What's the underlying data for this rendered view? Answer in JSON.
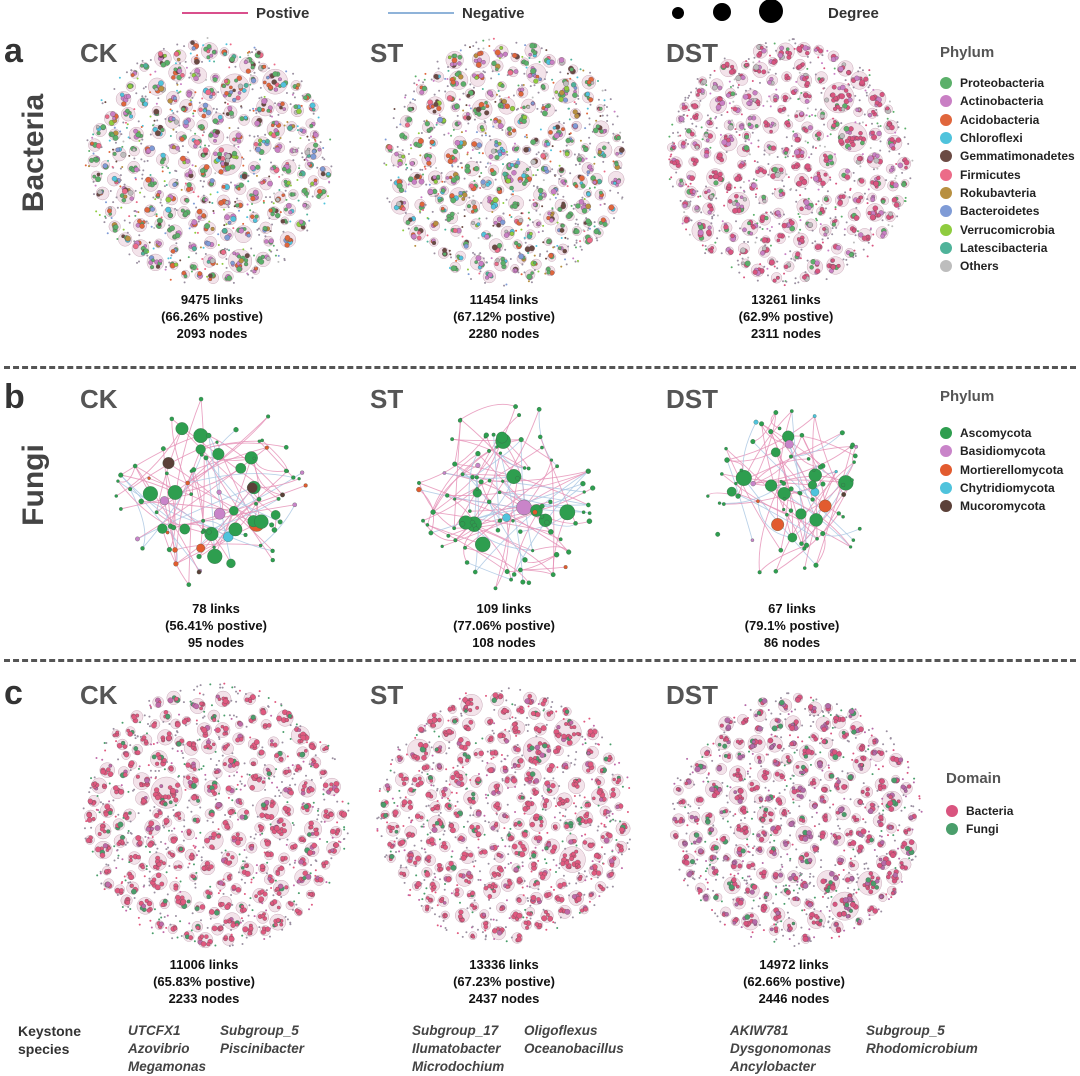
{
  "legend": {
    "positive_label": "Postive",
    "negative_label": "Negative",
    "degree_label": "Degree",
    "positive_color": "#d94f8c",
    "negative_color": "#8fb3d9"
  },
  "panels": [
    {
      "letter": "a",
      "row_label": "Bacteria",
      "legend_title": "Phylum",
      "legend_items": [
        {
          "label": "Proteobacteria",
          "color": "#5bb06a"
        },
        {
          "label": "Actinobacteria",
          "color": "#c97fc4"
        },
        {
          "label": "Acidobacteria",
          "color": "#e0663c"
        },
        {
          "label": "Chloroflexi",
          "color": "#4fc3dc"
        },
        {
          "label": "Gemmatimonadetes",
          "color": "#6b4a43"
        },
        {
          "label": "Firmicutes",
          "color": "#ec6b88"
        },
        {
          "label": "Rokubavteria",
          "color": "#b89040"
        },
        {
          "label": "Bacteroidetes",
          "color": "#7f9bd6"
        },
        {
          "label": "Verrucomicrobia",
          "color": "#8fcc3f"
        },
        {
          "label": "Latescibacteria",
          "color": "#4fb39a"
        },
        {
          "label": "Others",
          "color": "#bdbdbd"
        }
      ],
      "networks": [
        {
          "treatment": "CK",
          "links": "9475 links",
          "positive": "(66.26% postive)",
          "nodes": "2093 nodes"
        },
        {
          "treatment": "ST",
          "links": "11454 links",
          "positive": "(67.12% postive)",
          "nodes": "2280 nodes"
        },
        {
          "treatment": "DST",
          "links": "13261 links",
          "positive": "(62.9% postive)",
          "nodes": "2311 nodes"
        }
      ]
    },
    {
      "letter": "b",
      "row_label": "Fungi",
      "legend_title": "Phylum",
      "legend_items": [
        {
          "label": "Ascomycota",
          "color": "#2e9e4f"
        },
        {
          "label": "Basidiomycota",
          "color": "#c984c9"
        },
        {
          "label": "Mortierellomycota",
          "color": "#e25b2f"
        },
        {
          "label": "Chytridiomycota",
          "color": "#4fc3dc"
        },
        {
          "label": "Mucoromycota",
          "color": "#5b4038"
        }
      ],
      "networks": [
        {
          "treatment": "CK",
          "links": "78 links",
          "positive": "(56.41% postive)",
          "nodes": "95 nodes"
        },
        {
          "treatment": "ST",
          "links": "109 links",
          "positive": "(77.06% postive)",
          "nodes": "108 nodes"
        },
        {
          "treatment": "DST",
          "links": "67 links",
          "positive": "(79.1% postive)",
          "nodes": "86 nodes"
        }
      ]
    },
    {
      "letter": "c",
      "legend_title": "Domain",
      "legend_items": [
        {
          "label": "Bacteria",
          "color": "#d9547f"
        },
        {
          "label": "Fungi",
          "color": "#4a9e6b"
        }
      ],
      "networks": [
        {
          "treatment": "CK",
          "links": "11006 links",
          "positive": "(65.83% postive)",
          "nodes": "2233 nodes"
        },
        {
          "treatment": "ST",
          "links": "13336 links",
          "positive": "(67.23% postive)",
          "nodes": "2437 nodes"
        },
        {
          "treatment": "DST",
          "links": "14972 links",
          "positive": "(62.66% postive)",
          "nodes": "2446 nodes"
        }
      ]
    }
  ],
  "keystone": {
    "label_line1": "Keystone",
    "label_line2": "species",
    "groups": [
      {
        "col1": [
          "UTCFX1",
          "Azovibrio",
          "Megamonas"
        ],
        "col2": [
          "Subgroup_5",
          "Piscinibacter"
        ]
      },
      {
        "col1": [
          "Subgroup_17",
          "Ilumatobacter",
          "Microdochium"
        ],
        "col2": [
          "Oligoflexus",
          "Oceanobacillus"
        ]
      },
      {
        "col1": [
          "AKIW781",
          "Dysgonomonas",
          "Ancylobacter"
        ],
        "col2": [
          "Subgroup_5",
          "Rhodomicrobium"
        ]
      }
    ]
  }
}
